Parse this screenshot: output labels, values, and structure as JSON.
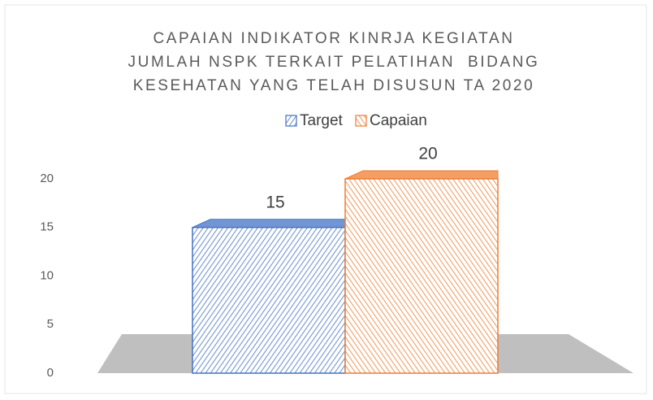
{
  "chart_data": {
    "type": "bar3d",
    "title": [
      "CAPAIAN INDIKATOR KINRJA KEGIATAN",
      "JUMLAH NSPK TERKAIT PELATIHAN  BIDANG",
      "KESEHATAN YANG TELAH DISUSUN TA 2020"
    ],
    "categories": [
      null
    ],
    "series": [
      {
        "name": "Target",
        "color": "#4472c4",
        "values": [
          15
        ]
      },
      {
        "name": "Capaian",
        "color": "#ed7d31",
        "values": [
          20
        ]
      }
    ],
    "ylim": [
      0,
      20
    ],
    "yticks": [
      0,
      5,
      10,
      15,
      20
    ],
    "grid": false
  }
}
